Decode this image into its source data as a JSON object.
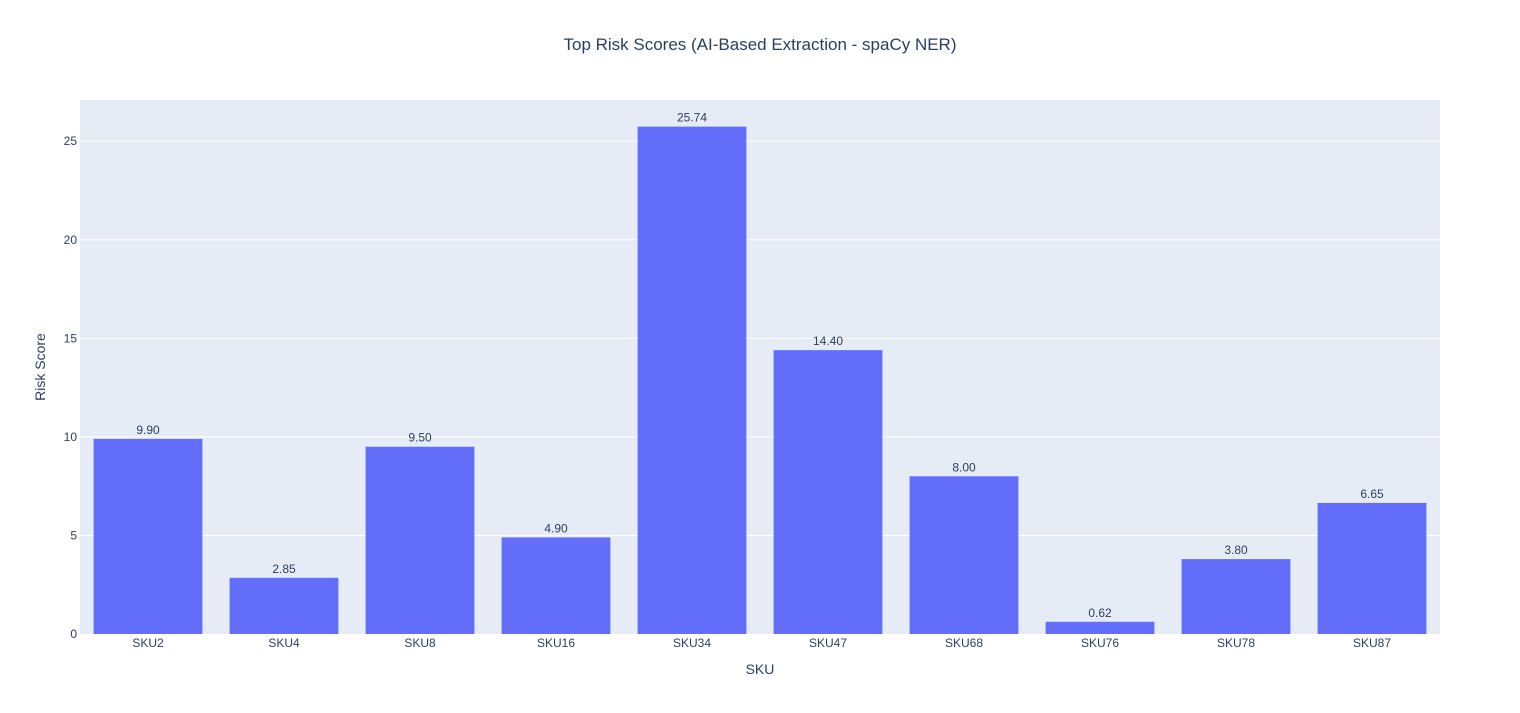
{
  "chart_data": {
    "type": "bar",
    "title": "Top Risk Scores (AI-Based Extraction - spaCy NER)",
    "xlabel": "SKU",
    "ylabel": "Risk Score",
    "categories": [
      "SKU2",
      "SKU4",
      "SKU8",
      "SKU16",
      "SKU34",
      "SKU47",
      "SKU68",
      "SKU76",
      "SKU78",
      "SKU87"
    ],
    "values": [
      9.9,
      2.85,
      9.5,
      4.9,
      25.74,
      14.4,
      8.0,
      0.62,
      3.8,
      6.65
    ],
    "value_labels": [
      "9.90",
      "2.85",
      "9.50",
      "4.90",
      "25.74",
      "14.40",
      "8.00",
      "0.62",
      "3.80",
      "6.65"
    ],
    "ylim": [
      0,
      27.09
    ],
    "yticks": [
      0,
      5,
      10,
      15,
      20,
      25
    ],
    "grid": true,
    "colors": {
      "bar": "#636efa",
      "plot_background": "#e5ecf6",
      "grid": "#ffffff",
      "text": "#2a3f5f"
    }
  }
}
